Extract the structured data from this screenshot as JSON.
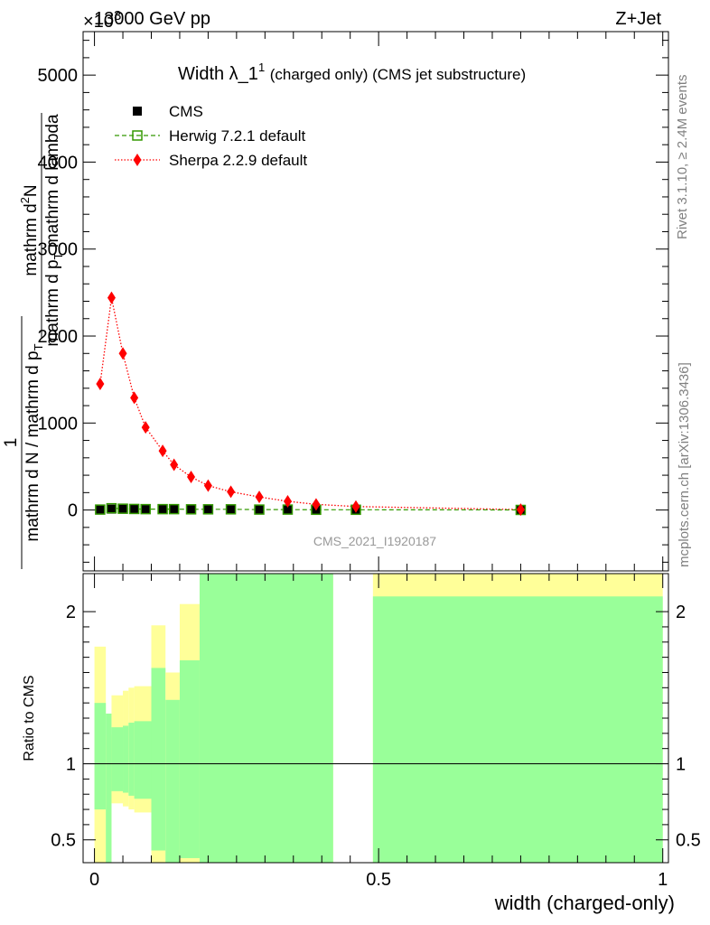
{
  "header": {
    "energy": "13000 GeV pp",
    "process": "Z+Jet",
    "exponent": "×10",
    "exponent_power": "3"
  },
  "side_labels": {
    "rivet": "Rivet 3.1.10, ≥ 2.4M events",
    "mcplots": "mcplots.cern.ch [arXiv:1306.3436]"
  },
  "colors": {
    "cms": "#000000",
    "herwig": "#339900",
    "sherpa": "#ff0000",
    "band_inner": "#99ff99",
    "band_outer": "#ffff99"
  },
  "chart_data": [
    {
      "type": "line",
      "panel": "main",
      "title": "Width λ_1",
      "title_superscript": "1",
      "subtitle": "(charged only) (CMS jet substructure)",
      "ylabel_numerator": "mathrm d",
      "ylabel_numerator_sup": "2",
      "ylabel_numerator_rest": "N",
      "ylabel_denominator": "mathrm d p",
      "ylabel_denominator_sub": "T",
      "ylabel_denominator_rest": " mathrm d lambda",
      "ylabel_prefix_num": "1",
      "ylabel_prefix_den": "mathrm d N / mathrm d p",
      "ylabel_prefix_den_sub": "T",
      "xlabel": "width (charged-only)",
      "watermark": "CMS_2021_I1920187",
      "xlim": [
        -0.02,
        1.01
      ],
      "ylim": [
        -700,
        5500
      ],
      "yticks": [
        0,
        1000,
        2000,
        3000,
        4000,
        5000
      ],
      "ytick_labels": [
        "0",
        "1000",
        "2000",
        "3000",
        "4000",
        "5000"
      ],
      "legend_position": "top-left",
      "series": [
        {
          "name": "CMS",
          "style": "markers",
          "x": [
            0.01,
            0.03,
            0.05,
            0.07,
            0.09,
            0.12,
            0.14,
            0.17,
            0.2,
            0.24,
            0.29,
            0.34,
            0.39,
            0.46,
            0.75
          ],
          "y": [
            5,
            10,
            10,
            10,
            10,
            10,
            10,
            8,
            8,
            8,
            5,
            5,
            3,
            3,
            1
          ]
        },
        {
          "name": "Herwig 7.2.1 default",
          "style": "dashed",
          "x": [
            0.01,
            0.03,
            0.05,
            0.07,
            0.09,
            0.12,
            0.14,
            0.17,
            0.2,
            0.24,
            0.29,
            0.34,
            0.39,
            0.46,
            0.75
          ],
          "y": [
            5,
            20,
            15,
            12,
            10,
            10,
            10,
            8,
            8,
            8,
            5,
            5,
            3,
            3,
            1
          ]
        },
        {
          "name": "Sherpa 2.2.9 default",
          "style": "dotted",
          "x": [
            0.01,
            0.03,
            0.05,
            0.07,
            0.09,
            0.12,
            0.14,
            0.17,
            0.2,
            0.24,
            0.29,
            0.34,
            0.39,
            0.46,
            0.75
          ],
          "y": [
            1450,
            2440,
            1800,
            1290,
            950,
            680,
            520,
            380,
            280,
            210,
            150,
            100,
            65,
            40,
            5
          ]
        }
      ]
    },
    {
      "type": "area",
      "panel": "ratio",
      "ylabel": "Ratio to CMS",
      "xlim": [
        -0.02,
        1.01
      ],
      "ylim": [
        0.35,
        2.25
      ],
      "yticks": [
        0.5,
        1,
        2
      ],
      "ytick_labels": [
        "0.5",
        "1",
        "2"
      ],
      "xticks": [
        0,
        0.5,
        1
      ],
      "xtick_labels": [
        "0",
        "0.5",
        "1"
      ],
      "reference_line": 1,
      "bins": [
        {
          "x0": 0.0,
          "x1": 0.02,
          "inner": [
            0.7,
            1.4
          ],
          "outer": [
            0.35,
            1.77
          ]
        },
        {
          "x0": 0.02,
          "x1": 0.03,
          "inner": [
            0.35,
            1.33
          ],
          "outer": [
            0.35,
            1.19
          ]
        },
        {
          "x0": 0.03,
          "x1": 0.05,
          "inner": [
            0.82,
            1.24
          ],
          "outer": [
            0.74,
            1.45
          ]
        },
        {
          "x0": 0.05,
          "x1": 0.06,
          "inner": [
            0.81,
            1.25
          ],
          "outer": [
            0.72,
            1.48
          ]
        },
        {
          "x0": 0.06,
          "x1": 0.07,
          "inner": [
            0.79,
            1.27
          ],
          "outer": [
            0.7,
            1.5
          ]
        },
        {
          "x0": 0.07,
          "x1": 0.1,
          "inner": [
            0.77,
            1.28
          ],
          "outer": [
            0.68,
            1.51
          ]
        },
        {
          "x0": 0.1,
          "x1": 0.125,
          "inner": [
            0.43,
            1.63
          ],
          "outer": [
            0.35,
            1.91
          ]
        },
        {
          "x0": 0.125,
          "x1": 0.15,
          "inner": [
            0.35,
            1.42
          ],
          "outer": [
            0.35,
            1.6
          ]
        },
        {
          "x0": 0.15,
          "x1": 0.185,
          "inner": [
            0.38,
            1.68
          ],
          "outer": [
            0.35,
            2.05
          ]
        },
        {
          "x0": 0.185,
          "x1": 0.42,
          "inner": [
            0.35,
            2.25
          ],
          "outer": [
            0.35,
            2.25
          ]
        },
        {
          "x0": 0.49,
          "x1": 1.0,
          "inner": [
            0.35,
            2.1
          ],
          "outer": [
            0.35,
            2.25
          ]
        }
      ]
    }
  ]
}
